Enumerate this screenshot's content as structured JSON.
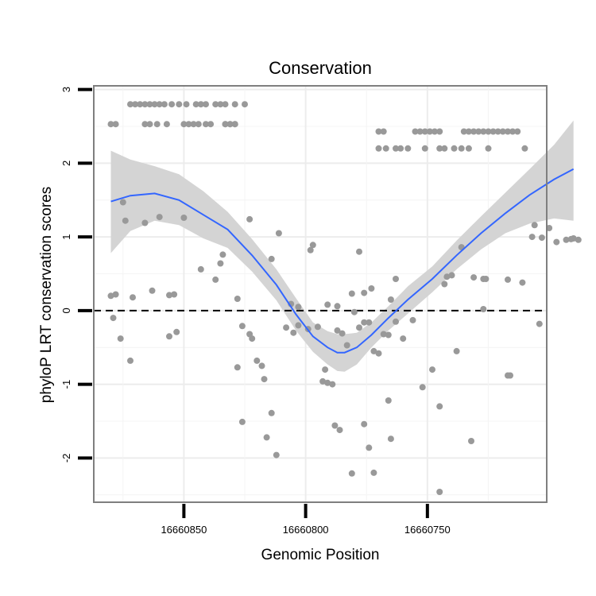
{
  "chart_data": {
    "type": "scatter",
    "title": "Conservation",
    "xlabel": "Genomic Position",
    "ylabel": "phyloP LRT conservation scores",
    "x_reversed": true,
    "xlim": [
      16660887,
      16660701
    ],
    "ylim": [
      -2.6,
      3.05
    ],
    "x_ticks": [
      16660850,
      16660800,
      16660750
    ],
    "y_ticks": [
      -2,
      -1,
      0,
      1,
      2,
      3
    ],
    "reference_line": {
      "y": 0,
      "style": "dashed"
    },
    "grid": true,
    "colors": {
      "points": "#999999",
      "smooth": "#3366ff",
      "ribbon": "#d4d4d4",
      "panel_border": "#7f7f7f"
    },
    "series": [
      {
        "kind": "points",
        "points": [
          [
            16660880,
            2.53
          ],
          [
            16660878,
            2.53
          ],
          [
            16660872,
            2.8
          ],
          [
            16660870,
            2.8
          ],
          [
            16660868,
            2.8
          ],
          [
            16660866,
            2.8
          ],
          [
            16660864,
            2.8
          ],
          [
            16660862,
            2.8
          ],
          [
            16660860,
            2.8
          ],
          [
            16660858,
            2.8
          ],
          [
            16660855,
            2.8
          ],
          [
            16660852,
            2.8
          ],
          [
            16660849,
            2.8
          ],
          [
            16660845,
            2.8
          ],
          [
            16660843,
            2.8
          ],
          [
            16660841,
            2.8
          ],
          [
            16660837,
            2.8
          ],
          [
            16660835,
            2.8
          ],
          [
            16660833,
            2.8
          ],
          [
            16660829,
            2.8
          ],
          [
            16660825,
            2.8
          ],
          [
            16660866,
            2.53
          ],
          [
            16660864,
            2.53
          ],
          [
            16660861,
            2.53
          ],
          [
            16660857,
            2.53
          ],
          [
            16660850,
            2.53
          ],
          [
            16660848,
            2.53
          ],
          [
            16660846,
            2.53
          ],
          [
            16660844,
            2.53
          ],
          [
            16660841,
            2.53
          ],
          [
            16660839,
            2.53
          ],
          [
            16660833,
            2.53
          ],
          [
            16660831,
            2.53
          ],
          [
            16660829,
            2.53
          ],
          [
            16660833,
            2.53
          ],
          [
            16660831,
            2.53
          ],
          [
            16660829,
            2.53
          ],
          [
            16660770,
            2.43
          ],
          [
            16660768,
            2.43
          ],
          [
            16660755,
            2.43
          ],
          [
            16660753,
            2.43
          ],
          [
            16660751,
            2.43
          ],
          [
            16660749,
            2.43
          ],
          [
            16660747,
            2.43
          ],
          [
            16660745,
            2.43
          ],
          [
            16660735,
            2.43
          ],
          [
            16660733,
            2.43
          ],
          [
            16660731,
            2.43
          ],
          [
            16660729,
            2.43
          ],
          [
            16660727,
            2.43
          ],
          [
            16660725,
            2.43
          ],
          [
            16660723,
            2.43
          ],
          [
            16660721,
            2.43
          ],
          [
            16660719,
            2.43
          ],
          [
            16660717,
            2.43
          ],
          [
            16660715,
            2.43
          ],
          [
            16660713,
            2.43
          ],
          [
            16660770,
            2.2
          ],
          [
            16660767,
            2.2
          ],
          [
            16660763,
            2.2
          ],
          [
            16660761,
            2.2
          ],
          [
            16660758,
            2.2
          ],
          [
            16660751,
            2.2
          ],
          [
            16660745,
            2.2
          ],
          [
            16660743,
            2.2
          ],
          [
            16660739,
            2.2
          ],
          [
            16660736,
            2.2
          ],
          [
            16660733,
            2.2
          ],
          [
            16660725,
            2.2
          ],
          [
            16660710,
            2.2
          ],
          [
            16660875,
            1.47
          ],
          [
            16660874,
            1.22
          ],
          [
            16660866,
            1.19
          ],
          [
            16660860,
            1.27
          ],
          [
            16660850,
            1.26
          ],
          [
            16660834,
            0.76
          ],
          [
            16660823,
            1.24
          ],
          [
            16660814,
            0.7
          ],
          [
            16660811,
            1.05
          ],
          [
            16660797,
            0.89
          ],
          [
            16660798,
            0.82
          ],
          [
            16660778,
            0.8
          ],
          [
            16660736,
            0.86
          ],
          [
            16660727,
            0.43
          ],
          [
            16660717,
            0.42
          ],
          [
            16660706,
            1.16
          ],
          [
            16660703,
            0.99
          ],
          [
            16660700,
            1.12
          ],
          [
            16660697,
            0.93
          ],
          [
            16660693,
            0.96
          ],
          [
            16660691,
            0.97
          ],
          [
            16660690,
            0.98
          ],
          [
            16660688,
            0.96
          ],
          [
            16660880,
            0.2
          ],
          [
            16660878,
            0.22
          ],
          [
            16660871,
            0.18
          ],
          [
            16660863,
            0.27
          ],
          [
            16660856,
            0.21
          ],
          [
            16660854,
            0.22
          ],
          [
            16660843,
            0.56
          ],
          [
            16660837,
            0.42
          ],
          [
            16660835,
            0.64
          ],
          [
            16660828,
            0.16
          ],
          [
            16660806,
            0.09
          ],
          [
            16660803,
            0.05
          ],
          [
            16660791,
            0.08
          ],
          [
            16660787,
            0.06
          ],
          [
            16660781,
            0.23
          ],
          [
            16660776,
            0.24
          ],
          [
            16660773,
            0.3
          ],
          [
            16660765,
            0.15
          ],
          [
            16660763,
            0.43
          ],
          [
            16660743,
            0.36
          ],
          [
            16660742,
            0.46
          ],
          [
            16660740,
            0.48
          ],
          [
            16660731,
            0.45
          ],
          [
            16660726,
            0.43
          ],
          [
            16660727,
            0.02
          ],
          [
            16660707,
            1.0
          ],
          [
            16660711,
            0.38
          ],
          [
            16660879,
            -0.1
          ],
          [
            16660876,
            -0.38
          ],
          [
            16660872,
            -0.68
          ],
          [
            16660856,
            -0.35
          ],
          [
            16660853,
            -0.29
          ],
          [
            16660826,
            -0.21
          ],
          [
            16660823,
            -0.32
          ],
          [
            16660822,
            -0.38
          ],
          [
            16660817,
            -0.93
          ],
          [
            16660818,
            -0.75
          ],
          [
            16660820,
            -0.68
          ],
          [
            16660808,
            -0.23
          ],
          [
            16660805,
            -0.3
          ],
          [
            16660803,
            -0.2
          ],
          [
            16660799,
            -0.25
          ],
          [
            16660795,
            -0.22
          ],
          [
            16660793,
            -0.96
          ],
          [
            16660791,
            -0.98
          ],
          [
            16660787,
            -0.27
          ],
          [
            16660785,
            -0.31
          ],
          [
            16660783,
            -0.47
          ],
          [
            16660789,
            -1.0
          ],
          [
            16660792,
            -0.8
          ],
          [
            16660780,
            -0.02
          ],
          [
            16660778,
            -0.23
          ],
          [
            16660776,
            -0.16
          ],
          [
            16660774,
            -0.16
          ],
          [
            16660772,
            -0.55
          ],
          [
            16660770,
            -0.58
          ],
          [
            16660768,
            -0.32
          ],
          [
            16660766,
            -0.33
          ],
          [
            16660763,
            -0.15
          ],
          [
            16660760,
            -0.38
          ],
          [
            16660756,
            -0.13
          ],
          [
            16660752,
            -1.04
          ],
          [
            16660748,
            -0.8
          ],
          [
            16660745,
            -1.3
          ],
          [
            16660738,
            -0.55
          ],
          [
            16660716,
            -0.88
          ],
          [
            16660704,
            -0.18
          ],
          [
            16660828,
            -0.77
          ],
          [
            16660826,
            -1.51
          ],
          [
            16660816,
            -1.72
          ],
          [
            16660814,
            -1.39
          ],
          [
            16660812,
            -1.96
          ],
          [
            16660788,
            -1.56
          ],
          [
            16660786,
            -1.62
          ],
          [
            16660781,
            -2.21
          ],
          [
            16660776,
            -1.54
          ],
          [
            16660774,
            -1.86
          ],
          [
            16660772,
            -2.2
          ],
          [
            16660766,
            -1.22
          ],
          [
            16660765,
            -1.74
          ],
          [
            16660745,
            -2.46
          ],
          [
            16660732,
            -1.77
          ],
          [
            16660717,
            -0.88
          ]
        ]
      },
      {
        "kind": "loess",
        "name": "",
        "points": [
          [
            16660880,
            1.48
          ],
          [
            16660872,
            1.56
          ],
          [
            16660862,
            1.59
          ],
          [
            16660852,
            1.5
          ],
          [
            16660842,
            1.3
          ],
          [
            16660832,
            1.1
          ],
          [
            16660822,
            0.75
          ],
          [
            16660812,
            0.35
          ],
          [
            16660804,
            -0.05
          ],
          [
            16660797,
            -0.35
          ],
          [
            16660791,
            -0.5
          ],
          [
            16660787,
            -0.57
          ],
          [
            16660784,
            -0.57
          ],
          [
            16660779,
            -0.5
          ],
          [
            16660773,
            -0.33
          ],
          [
            16660766,
            -0.1
          ],
          [
            16660758,
            0.15
          ],
          [
            16660748,
            0.43
          ],
          [
            16660738,
            0.75
          ],
          [
            16660728,
            1.05
          ],
          [
            16660718,
            1.32
          ],
          [
            16660708,
            1.57
          ],
          [
            16660698,
            1.78
          ],
          [
            16660690,
            1.92
          ]
        ],
        "band_upper": [
          [
            16660880,
            2.17
          ],
          [
            16660872,
            2.05
          ],
          [
            16660862,
            1.96
          ],
          [
            16660852,
            1.85
          ],
          [
            16660842,
            1.62
          ],
          [
            16660832,
            1.34
          ],
          [
            16660822,
            0.97
          ],
          [
            16660812,
            0.56
          ],
          [
            16660804,
            0.17
          ],
          [
            16660797,
            -0.16
          ],
          [
            16660791,
            -0.28
          ],
          [
            16660787,
            -0.32
          ],
          [
            16660784,
            -0.32
          ],
          [
            16660779,
            -0.3
          ],
          [
            16660773,
            -0.16
          ],
          [
            16660766,
            0.06
          ],
          [
            16660758,
            0.33
          ],
          [
            16660748,
            0.6
          ],
          [
            16660738,
            0.95
          ],
          [
            16660728,
            1.28
          ],
          [
            16660718,
            1.6
          ],
          [
            16660708,
            1.92
          ],
          [
            16660698,
            2.25
          ],
          [
            16660690,
            2.58
          ]
        ],
        "band_lower": [
          [
            16660880,
            0.78
          ],
          [
            16660872,
            1.08
          ],
          [
            16660862,
            1.22
          ],
          [
            16660852,
            1.16
          ],
          [
            16660842,
            0.98
          ],
          [
            16660832,
            0.85
          ],
          [
            16660822,
            0.53
          ],
          [
            16660812,
            0.14
          ],
          [
            16660804,
            -0.27
          ],
          [
            16660797,
            -0.56
          ],
          [
            16660791,
            -0.73
          ],
          [
            16660787,
            -0.82
          ],
          [
            16660784,
            -0.83
          ],
          [
            16660779,
            -0.73
          ],
          [
            16660773,
            -0.5
          ],
          [
            16660766,
            -0.27
          ],
          [
            16660758,
            -0.04
          ],
          [
            16660748,
            0.25
          ],
          [
            16660738,
            0.56
          ],
          [
            16660728,
            0.83
          ],
          [
            16660718,
            1.05
          ],
          [
            16660708,
            1.18
          ],
          [
            16660698,
            1.25
          ],
          [
            16660690,
            1.22
          ]
        ]
      }
    ]
  }
}
